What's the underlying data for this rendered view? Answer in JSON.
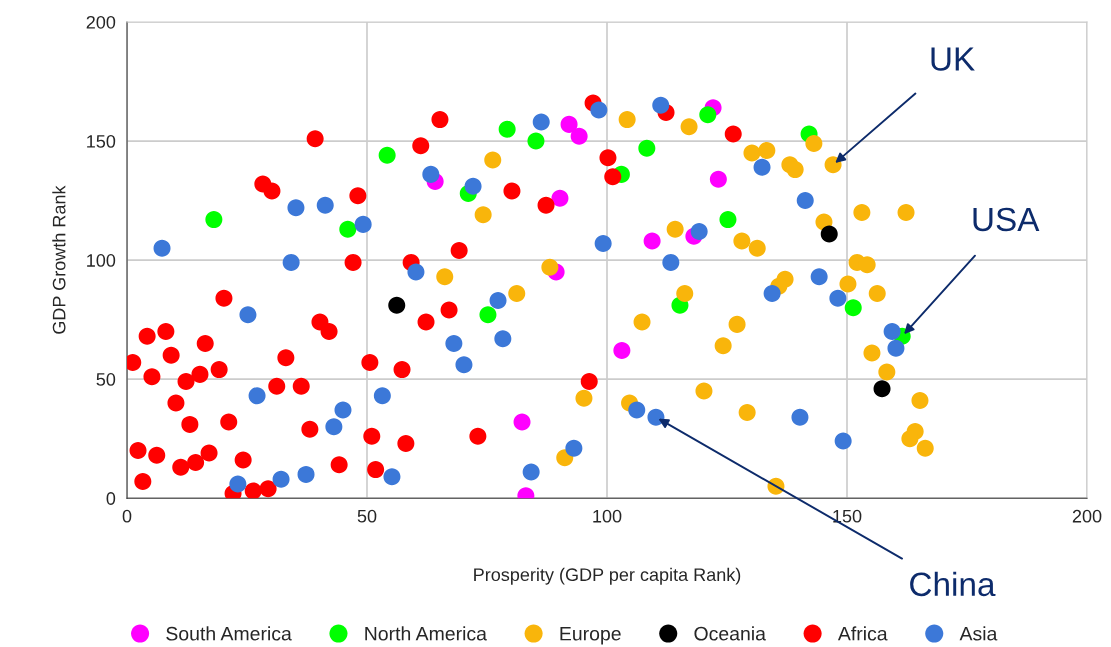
{
  "chart_data": {
    "type": "scatter",
    "xlabel": "Prosperity (GDP per capita Rank)",
    "ylabel": "GDP Growth Rank",
    "xlim": [
      0,
      200
    ],
    "xticks": [
      0,
      50,
      100,
      150,
      200
    ],
    "ylim": [
      0,
      200
    ],
    "yticks": [
      0,
      50,
      100,
      150,
      200
    ],
    "grid": true,
    "legend": "bottom",
    "marker": "circle",
    "series": [
      {
        "name": "South America",
        "color": "#ff00ff",
        "x": [
          64.2,
          92.1,
          94.2,
          90.2,
          89.4,
          103.1,
          82.3,
          83.1,
          122.1,
          123.2,
          109.4,
          118.1
        ],
        "values": [
          133,
          157,
          152,
          126,
          95,
          62,
          32,
          1,
          164,
          134,
          108,
          110
        ]
      },
      {
        "name": "North America",
        "color": "#00ff00",
        "x": [
          18.1,
          46.0,
          54.2,
          79.2,
          85.2,
          71.1,
          75.2,
          103.0,
          108.3,
          121.0,
          142.1,
          125.2,
          115.2,
          151.3,
          161.5
        ],
        "values": [
          117,
          113,
          144,
          155,
          150,
          128,
          77,
          136,
          147,
          161,
          153,
          117,
          81,
          80,
          68
        ]
      },
      {
        "name": "Europe",
        "color": "#f9b50b",
        "x": [
          76.2,
          74.2,
          66.2,
          81.2,
          88.1,
          95.2,
          91.2,
          104.2,
          117.1,
          130.2,
          133.3,
          138.1,
          139.2,
          143.1,
          147.1,
          145.2,
          153.1,
          162.3,
          114.2,
          128.1,
          131.3,
          116.2,
          107.3,
          127.1,
          124.2,
          137.1,
          135.8,
          152.1,
          154.2,
          150.2,
          156.3,
          155.2,
          158.3,
          120.2,
          104.7,
          129.2,
          135.2,
          165.2,
          164.2,
          163.1,
          166.3
        ],
        "values": [
          142,
          119,
          93,
          86,
          97,
          42,
          17,
          159,
          156,
          145,
          146,
          140,
          138,
          149,
          140,
          116,
          120,
          120,
          113,
          108,
          105,
          86,
          74,
          73,
          64,
          92,
          89,
          99,
          98,
          90,
          86,
          61,
          53,
          45,
          40,
          36,
          5,
          41,
          28,
          25,
          21
        ]
      },
      {
        "name": "Oceania",
        "color": "#000000",
        "x": [
          56.2,
          146.3,
          157.3
        ],
        "values": [
          81,
          111,
          46
        ]
      },
      {
        "name": "Africa",
        "color": "#ff0000",
        "x": [
          39.2,
          28.3,
          30.2,
          48.1,
          47.1,
          20.2,
          40.2,
          42.1,
          4.2,
          8.1,
          16.3,
          9.2,
          1.2,
          33.1,
          50.6,
          5.2,
          19.2,
          15.2,
          12.3,
          31.2,
          36.3,
          10.2,
          13.1,
          21.2,
          38.1,
          51.0,
          2.3,
          6.2,
          17.1,
          11.2,
          14.3,
          24.2,
          44.2,
          51.8,
          3.3,
          22.1,
          26.3,
          29.4,
          65.2,
          61.2,
          80.2,
          87.3,
          97.1,
          100.2,
          101.2,
          69.2,
          59.2,
          67.1,
          62.3,
          57.3,
          96.3,
          58.1,
          73.1,
          112.3,
          126.3
        ],
        "values": [
          151,
          132,
          129,
          127,
          99,
          84,
          74,
          70,
          68,
          70,
          65,
          60,
          57,
          59,
          57,
          51,
          54,
          52,
          49,
          47,
          47,
          40,
          31,
          32,
          29,
          26,
          20,
          18,
          19,
          13,
          15,
          16,
          14,
          12,
          7,
          2,
          3,
          4,
          159,
          148,
          129,
          123,
          166,
          143,
          135,
          104,
          99,
          79,
          74,
          54,
          49,
          23,
          26,
          162,
          153
        ]
      },
      {
        "name": "Asia",
        "color": "#3c78d8",
        "x": [
          7.3,
          35.2,
          41.3,
          49.2,
          34.2,
          25.2,
          27.1,
          45.0,
          43.1,
          23.1,
          32.1,
          37.3,
          63.3,
          72.1,
          86.3,
          98.3,
          99.2,
          60.2,
          77.3,
          68.1,
          78.3,
          70.2,
          53.2,
          55.2,
          84.2,
          93.1,
          111.2,
          132.3,
          141.3,
          119.2,
          113.3,
          134.4,
          144.2,
          148.1,
          159.4,
          160.2,
          106.2,
          110.2,
          140.2,
          149.2
        ],
        "values": [
          105,
          122,
          123,
          115,
          99,
          77,
          43,
          37,
          30,
          6,
          8,
          10,
          136,
          131,
          158,
          163,
          107,
          95,
          83,
          65,
          67,
          56,
          43,
          9,
          11,
          21,
          165,
          139,
          125,
          112,
          99,
          86,
          93,
          84,
          70,
          63,
          37,
          34,
          34,
          24
        ]
      }
    ],
    "annotations": [
      {
        "text": "UK",
        "x": 147.1,
        "y": 140
      },
      {
        "text": "USA",
        "x": 161.5,
        "y": 68
      },
      {
        "text": "China",
        "x": 110.2,
        "y": 34
      }
    ]
  }
}
